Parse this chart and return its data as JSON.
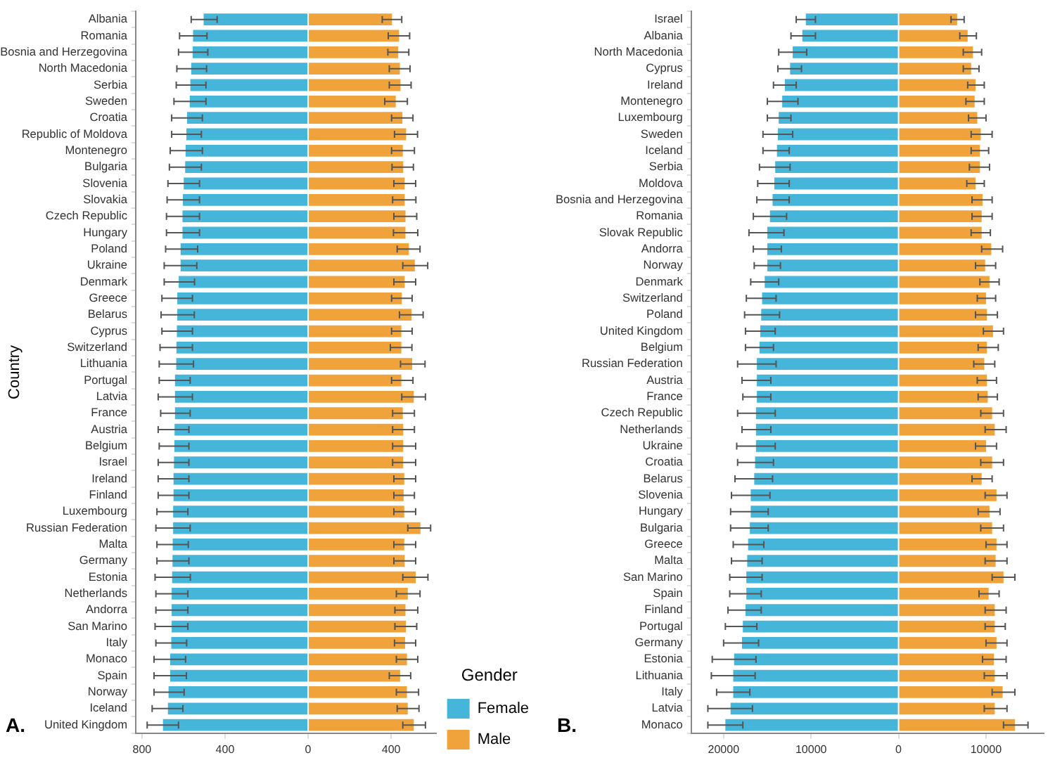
{
  "chart_data": [
    {
      "type": "bar",
      "orientation": "horizontal",
      "stacked": true,
      "ylabel": "Country",
      "legend": "right",
      "legend_title": "Gender",
      "grid": false,
      "annotations": [
        "A."
      ],
      "categories": [
        "Albania",
        "Romania",
        "Bosnia and Herzegovina",
        "North Macedonia",
        "Serbia",
        "Sweden",
        "Croatia",
        "Republic of Moldova",
        "Montenegro",
        "Bulgaria",
        "Slovenia",
        "Slovakia",
        "Czech Republic",
        "Hungary",
        "Poland",
        "Ukraine",
        "Denmark",
        "Greece",
        "Belarus",
        "Cyprus",
        "Switzerland",
        "Lithuania",
        "Portugal",
        "Latvia",
        "France",
        "Austria",
        "Belgium",
        "Israel",
        "Ireland",
        "Finland",
        "Luxembourg",
        "Russian Federation",
        "Malta",
        "Germany",
        "Estonia",
        "Netherlands",
        "Andorra",
        "San Marino",
        "Italy",
        "Monaco",
        "Spain",
        "Norway",
        "Iceland",
        "United Kingdom"
      ],
      "xlim": [
        -830,
        615
      ],
      "xticks": [
        {
          "value": -800,
          "label": "800"
        },
        {
          "value": -400,
          "label": "400"
        },
        0,
        400
      ],
      "series": [
        {
          "name": "Female",
          "color": "#45b5d9",
          "values": [
            -503,
            -554,
            -556,
            -563,
            -567,
            -570,
            -583,
            -586,
            -590,
            -592,
            -599,
            -603,
            -605,
            -605,
            -614,
            -614,
            -623,
            -630,
            -630,
            -632,
            -634,
            -635,
            -641,
            -641,
            -641,
            -643,
            -644,
            -646,
            -648,
            -648,
            -650,
            -650,
            -652,
            -653,
            -655,
            -657,
            -657,
            -657,
            -659,
            -664,
            -664,
            -672,
            -675,
            -699
          ],
          "errors": [
            [
              -563,
              -438
            ],
            [
              -619,
              -487
            ],
            [
              -624,
              -483
            ],
            [
              -632,
              -489
            ],
            [
              -635,
              -492
            ],
            [
              -646,
              -492
            ],
            [
              -657,
              -509
            ],
            [
              -657,
              -514
            ],
            [
              -664,
              -509
            ],
            [
              -668,
              -514
            ],
            [
              -675,
              -523
            ],
            [
              -679,
              -523
            ],
            [
              -682,
              -523
            ],
            [
              -682,
              -523
            ],
            [
              -686,
              -532
            ],
            [
              -693,
              -536
            ],
            [
              -693,
              -547
            ],
            [
              -704,
              -557
            ],
            [
              -708,
              -548
            ],
            [
              -704,
              -557
            ],
            [
              -713,
              -557
            ],
            [
              -717,
              -552
            ],
            [
              -717,
              -568
            ],
            [
              -722,
              -557
            ],
            [
              -710,
              -568
            ],
            [
              -722,
              -574
            ],
            [
              -717,
              -574
            ],
            [
              -722,
              -574
            ],
            [
              -722,
              -574
            ],
            [
              -722,
              -574
            ],
            [
              -728,
              -579
            ],
            [
              -733,
              -568
            ],
            [
              -728,
              -577
            ],
            [
              -728,
              -574
            ],
            [
              -737,
              -567
            ],
            [
              -733,
              -579
            ],
            [
              -733,
              -579
            ],
            [
              -737,
              -579
            ],
            [
              -733,
              -585
            ],
            [
              -742,
              -590
            ],
            [
              -742,
              -586
            ],
            [
              -742,
              -597
            ],
            [
              -751,
              -603
            ],
            [
              -775,
              -624
            ]
          ]
        },
        {
          "name": "Male",
          "color": "#f0a33a",
          "values": [
            404,
            438,
            434,
            442,
            445,
            422,
            454,
            472,
            456,
            458,
            465,
            465,
            469,
            469,
            485,
            514,
            465,
            451,
            498,
            449,
            449,
            501,
            449,
            509,
            456,
            458,
            458,
            458,
            463,
            460,
            463,
            541,
            463,
            465,
            518,
            480,
            469,
            471,
            467,
            476,
            443,
            476,
            480,
            509
          ],
          "errors": [
            [
              357,
              451
            ],
            [
              386,
              489
            ],
            [
              384,
              485
            ],
            [
              391,
              491
            ],
            [
              391,
              496
            ],
            [
              369,
              478
            ],
            [
              402,
              505
            ],
            [
              416,
              527
            ],
            [
              402,
              512
            ],
            [
              404,
              507
            ],
            [
              413,
              518
            ],
            [
              407,
              519
            ],
            [
              413,
              523
            ],
            [
              411,
              528
            ],
            [
              429,
              539
            ],
            [
              456,
              576
            ],
            [
              413,
              518
            ],
            [
              402,
              501
            ],
            [
              440,
              554
            ],
            [
              402,
              501
            ],
            [
              396,
              500
            ],
            [
              445,
              563
            ],
            [
              402,
              505
            ],
            [
              451,
              565
            ],
            [
              407,
              512
            ],
            [
              407,
              512
            ],
            [
              407,
              518
            ],
            [
              407,
              518
            ],
            [
              413,
              518
            ],
            [
              413,
              512
            ],
            [
              413,
              518
            ],
            [
              480,
              590
            ],
            [
              413,
              518
            ],
            [
              413,
              518
            ],
            [
              456,
              577
            ],
            [
              425,
              539
            ],
            [
              418,
              528
            ],
            [
              418,
              523
            ],
            [
              416,
              518
            ],
            [
              425,
              528
            ],
            [
              391,
              494
            ],
            [
              425,
              532
            ],
            [
              429,
              534
            ],
            [
              456,
              565
            ]
          ]
        }
      ]
    },
    {
      "type": "bar",
      "orientation": "horizontal",
      "stacked": true,
      "grid": false,
      "annotations": [
        "B."
      ],
      "categories": [
        "Israel",
        "Albania",
        "North Macedonia",
        "Cyprus",
        "Ireland",
        "Montenegro",
        "Luxembourg",
        "Sweden",
        "Iceland",
        "Serbia",
        "Moldova",
        "Bosnia and Herzegovina",
        "Romania",
        "Slovak Republic",
        "Andorra",
        "Norway",
        "Denmark",
        "Switzerland",
        "Poland",
        "United Kingdom",
        "Belgium",
        "Russian Federation",
        "Austria",
        "France",
        "Czech Republic",
        "Netherlands",
        "Ukraine",
        "Croatia",
        "Belarus",
        "Slovenia",
        "Hungary",
        "Bulgaria",
        "Greece",
        "Malta",
        "San Marino",
        "Spain",
        "Finland",
        "Portugal",
        "Germany",
        "Estonia",
        "Lithuania",
        "Italy",
        "Latvia",
        "Monaco"
      ],
      "xlim": [
        -23700,
        16600
      ],
      "xticks": [
        {
          "value": -20000,
          "label": "20000"
        },
        {
          "value": -10000,
          "label": "10000"
        },
        0,
        10000
      ],
      "series": [
        {
          "color": "#45b5d9",
          "values": [
            -10600,
            -11000,
            -12100,
            -12400,
            -13000,
            -13300,
            -13700,
            -13800,
            -13900,
            -14100,
            -14200,
            -14400,
            -14700,
            -15000,
            -15000,
            -15000,
            -15300,
            -15600,
            -15700,
            -15800,
            -15900,
            -16200,
            -16200,
            -16200,
            -16300,
            -16300,
            -16300,
            -16400,
            -16500,
            -16900,
            -16900,
            -17000,
            -17200,
            -17300,
            -17400,
            -17400,
            -17500,
            -17800,
            -17900,
            -18800,
            -18900,
            -18900,
            -19200,
            -19800
          ],
          "errors": [
            [
              -11700,
              -9500
            ],
            [
              -12300,
              -9500
            ],
            [
              -13700,
              -10500
            ],
            [
              -13800,
              -11100
            ],
            [
              -14300,
              -11700
            ],
            [
              -15000,
              -11500
            ],
            [
              -15000,
              -12300
            ],
            [
              -15500,
              -12100
            ],
            [
              -15500,
              -12500
            ],
            [
              -15900,
              -12400
            ],
            [
              -16100,
              -12500
            ],
            [
              -16200,
              -12500
            ],
            [
              -16600,
              -12800
            ],
            [
              -17100,
              -13100
            ],
            [
              -16600,
              -13400
            ],
            [
              -16500,
              -13500
            ],
            [
              -16900,
              -13700
            ],
            [
              -17400,
              -14000
            ],
            [
              -17600,
              -13600
            ],
            [
              -17500,
              -14100
            ],
            [
              -17500,
              -14300
            ],
            [
              -18400,
              -14000
            ],
            [
              -17900,
              -14600
            ],
            [
              -17800,
              -14600
            ],
            [
              -18400,
              -14100
            ],
            [
              -17900,
              -14600
            ],
            [
              -18500,
              -14100
            ],
            [
              -18400,
              -14300
            ],
            [
              -18700,
              -14400
            ],
            [
              -19100,
              -14700
            ],
            [
              -19200,
              -14900
            ],
            [
              -19200,
              -14900
            ],
            [
              -18900,
              -15400
            ],
            [
              -19100,
              -15600
            ],
            [
              -19300,
              -15600
            ],
            [
              -19300,
              -15700
            ],
            [
              -19500,
              -15700
            ],
            [
              -19800,
              -16200
            ],
            [
              -20000,
              -16000
            ],
            [
              -21300,
              -16300
            ],
            [
              -21400,
              -16400
            ],
            [
              -20800,
              -17000
            ],
            [
              -21800,
              -16700
            ],
            [
              -21800,
              -17800
            ]
          ]
        },
        {
          "color": "#f0a33a",
          "values": [
            6700,
            7900,
            8500,
            8300,
            8800,
            8700,
            9000,
            9400,
            9300,
            9300,
            8800,
            9600,
            9500,
            9500,
            10600,
            9900,
            10400,
            10000,
            10100,
            10800,
            10100,
            9800,
            10100,
            10200,
            10700,
            11000,
            10000,
            10700,
            9500,
            11200,
            10400,
            10700,
            11200,
            11100,
            12000,
            10300,
            11000,
            11000,
            11200,
            10900,
            11000,
            11900,
            11000,
            13300
          ],
          "errors": [
            [
              6000,
              7500
            ],
            [
              7000,
              8900
            ],
            [
              7400,
              9500
            ],
            [
              7400,
              9200
            ],
            [
              7900,
              9800
            ],
            [
              7700,
              9800
            ],
            [
              8000,
              10000
            ],
            [
              8300,
              10700
            ],
            [
              8300,
              10300
            ],
            [
              8100,
              10400
            ],
            [
              7800,
              9800
            ],
            [
              8400,
              10700
            ],
            [
              8400,
              10700
            ],
            [
              8300,
              10500
            ],
            [
              9500,
              11900
            ],
            [
              8800,
              11100
            ],
            [
              9300,
              11500
            ],
            [
              9000,
              11100
            ],
            [
              8800,
              11300
            ],
            [
              9700,
              12000
            ],
            [
              9100,
              11400
            ],
            [
              8600,
              11000
            ],
            [
              9000,
              11200
            ],
            [
              9100,
              11300
            ],
            [
              9400,
              12000
            ],
            [
              9900,
              12300
            ],
            [
              8800,
              11200
            ],
            [
              9400,
              12000
            ],
            [
              8400,
              10700
            ],
            [
              9900,
              12400
            ],
            [
              9100,
              11600
            ],
            [
              9400,
              12000
            ],
            [
              10000,
              12400
            ],
            [
              9900,
              12400
            ],
            [
              10700,
              13300
            ],
            [
              9200,
              11500
            ],
            [
              9900,
              12300
            ],
            [
              9900,
              12200
            ],
            [
              10000,
              12400
            ],
            [
              9600,
              12300
            ],
            [
              9800,
              12400
            ],
            [
              10700,
              13300
            ],
            [
              9800,
              12400
            ],
            [
              12000,
              14800
            ]
          ]
        }
      ]
    }
  ]
}
